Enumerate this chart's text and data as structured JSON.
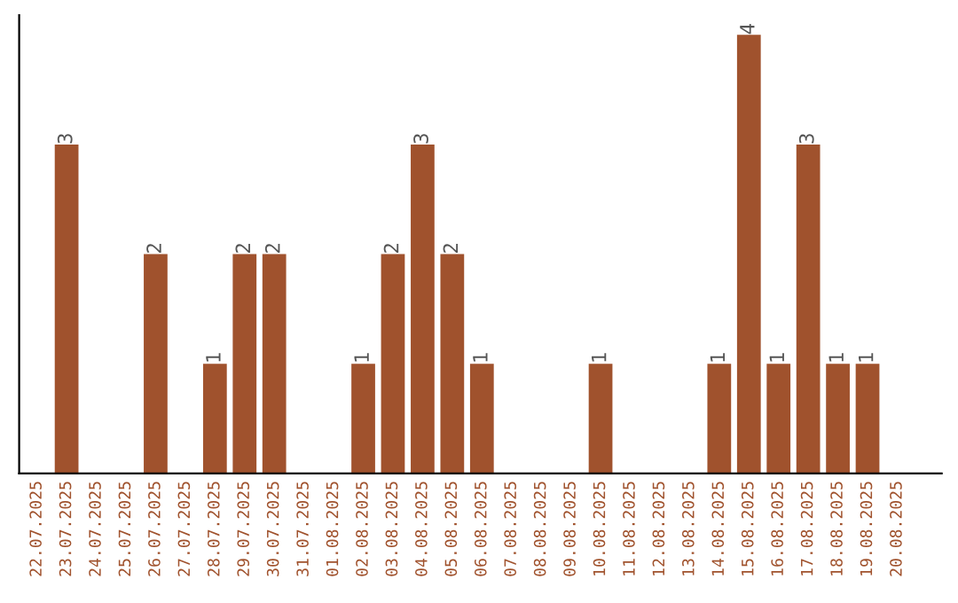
{
  "chart_data": {
    "type": "bar",
    "categories": [
      "22.07.2025",
      "23.07.2025",
      "24.07.2025",
      "25.07.2025",
      "26.07.2025",
      "27.07.2025",
      "28.07.2025",
      "29.07.2025",
      "30.07.2025",
      "31.07.2025",
      "01.08.2025",
      "02.08.2025",
      "03.08.2025",
      "04.08.2025",
      "05.08.2025",
      "06.08.2025",
      "07.08.2025",
      "08.08.2025",
      "09.08.2025",
      "10.08.2025",
      "11.08.2025",
      "12.08.2025",
      "13.08.2025",
      "14.08.2025",
      "15.08.2025",
      "16.08.2025",
      "17.08.2025",
      "18.08.2025",
      "19.08.2025",
      "20.08.2025"
    ],
    "values": [
      0,
      3,
      0,
      0,
      2,
      0,
      1,
      2,
      2,
      0,
      0,
      1,
      2,
      3,
      2,
      1,
      0,
      0,
      0,
      1,
      0,
      0,
      0,
      1,
      4,
      1,
      3,
      1,
      1,
      0
    ],
    "value_labels": [
      null,
      "3",
      null,
      null,
      "2",
      null,
      "1",
      "2",
      "2",
      null,
      null,
      "1",
      "2",
      "3",
      "2",
      "1",
      null,
      null,
      null,
      "1",
      null,
      null,
      null,
      "1",
      "4",
      "1",
      "3",
      "1",
      "1",
      null
    ],
    "color": "#a0522d",
    "grid": false,
    "legend": false
  }
}
